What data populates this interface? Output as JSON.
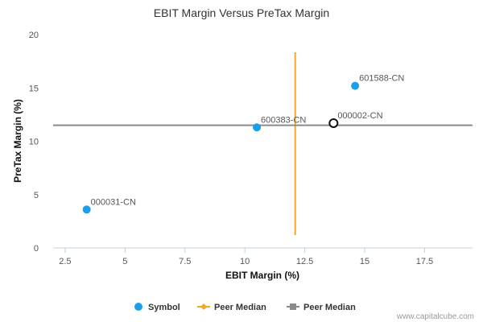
{
  "chart_data": {
    "type": "scatter",
    "title": "EBIT Margin Versus PreTax Margin",
    "xlabel": "EBIT Margin (%)",
    "ylabel": "PreTax Margin (%)",
    "xlim": [
      2,
      19.5
    ],
    "ylim": [
      0,
      20
    ],
    "x_ticks": [
      2.5,
      5,
      7.5,
      10,
      12.5,
      15,
      17.5
    ],
    "x_tick_labels": [
      "2.5",
      "5",
      "7.5",
      "10",
      "12.5",
      "15",
      "17.5"
    ],
    "y_ticks": [
      0,
      5,
      10,
      15,
      20
    ],
    "y_tick_labels": [
      "0",
      "5",
      "10",
      "15",
      "20"
    ],
    "points": [
      {
        "label": "000031-CN",
        "x": 3.4,
        "y": 3.6,
        "style": "filled"
      },
      {
        "label": "600383-CN",
        "x": 10.5,
        "y": 11.3,
        "style": "filled"
      },
      {
        "label": "601588-CN",
        "x": 14.6,
        "y": 15.2,
        "style": "filled"
      },
      {
        "label": "000002-CN",
        "x": 13.7,
        "y": 11.7,
        "style": "hollow"
      }
    ],
    "peer_median_x": 12.1,
    "peer_median_y": 11.5,
    "legend": [
      {
        "label": "Symbol",
        "marker": "circle",
        "color": "#1a9fe8"
      },
      {
        "label": "Peer Median",
        "marker": "diamond-line",
        "color": "#f5a623"
      },
      {
        "label": "Peer Median",
        "marker": "square-line",
        "color": "#8a8a8a"
      }
    ],
    "legend_position": "bottom",
    "grid": false
  },
  "colors": {
    "point": "#1a9fe8",
    "hollow": "#111111",
    "median_x": "#f5a623",
    "median_y": "#8a8a8a",
    "axis": "#c0d0e0"
  },
  "watermark": "www.capitalcube.com"
}
